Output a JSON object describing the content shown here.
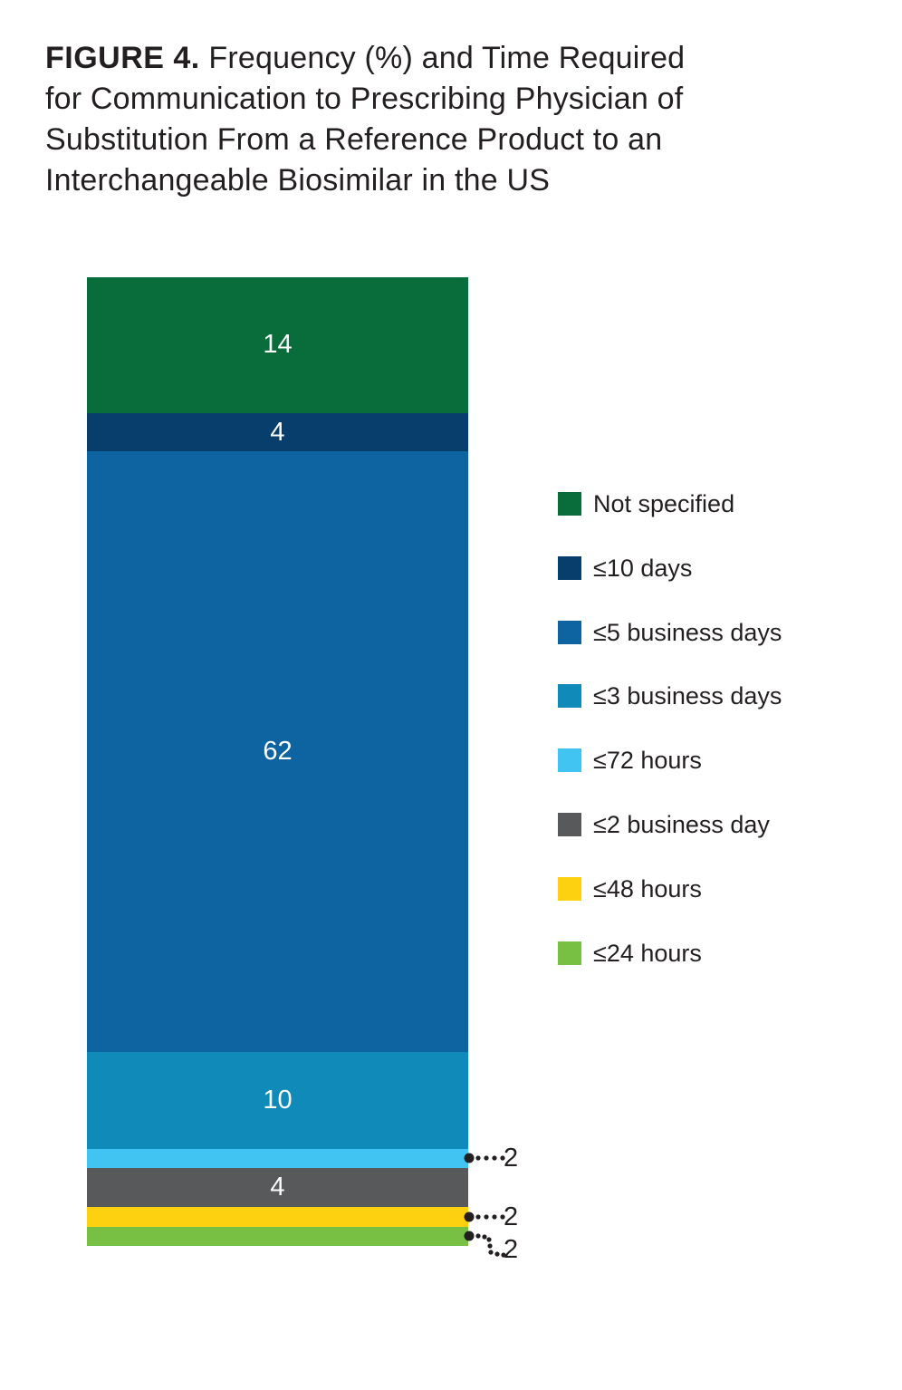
{
  "figure": {
    "label": "FIGURE 4.",
    "title_lines": [
      "Frequency (%) and Time Required",
      "for Communication to Prescribing Physician of",
      "Substitution From a Reference Product to an",
      "Interchangeable Biosimilar in the US"
    ]
  },
  "chart_data": {
    "type": "bar",
    "subtype": "single-stacked-column",
    "title": "FIGURE 4. Frequency (%) and Time Required for Communication to Prescribing Physician of Substitution From a Reference Product to an Interchangeable Biosimilar in the US",
    "unit": "%",
    "ylim": [
      0,
      100
    ],
    "axis": "none",
    "grid": false,
    "legend_position": "right",
    "categories": [
      "Time required for communication of substitution"
    ],
    "series": [
      {
        "name": "Not specified",
        "value": 14,
        "color": "#086d3a",
        "label_inside": "14",
        "callout": ""
      },
      {
        "name": "≤10 days",
        "value": 4,
        "color": "#083e6b",
        "label_inside": "4",
        "callout": ""
      },
      {
        "name": "≤5 business days",
        "value": 62,
        "color": "#0e63a1",
        "label_inside": "62",
        "callout": ""
      },
      {
        "name": "≤3 business days",
        "value": 10,
        "color": "#108ab9",
        "label_inside": "10",
        "callout": ""
      },
      {
        "name": "≤72 hours",
        "value": 2,
        "color": "#41c4f1",
        "label_inside": "",
        "callout": "2"
      },
      {
        "name": "≤2 business day",
        "value": 4,
        "color": "#58595b",
        "label_inside": "4",
        "callout": ""
      },
      {
        "name": "≤48 hours",
        "value": 2,
        "color": "#fed110",
        "label_inside": "",
        "callout": "2"
      },
      {
        "name": "≤24 hours",
        "value": 2,
        "color": "#78c043",
        "label_inside": "",
        "callout": "2"
      }
    ],
    "callout_color": "#231f20",
    "value_label_color": "#ffffff"
  }
}
